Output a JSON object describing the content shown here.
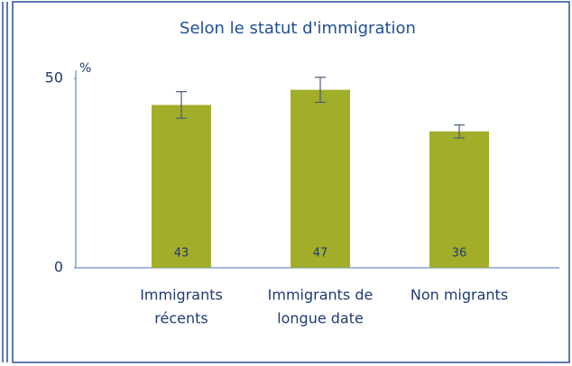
{
  "chart_data": {
    "type": "bar",
    "title": "Selon le statut d'immigration",
    "unit": "%",
    "categories": [
      [
        "Immigrants",
        "récents"
      ],
      [
        "Immigrants de",
        "longue date"
      ],
      [
        "Non migrants"
      ]
    ],
    "values": [
      43,
      47,
      36
    ],
    "errors": [
      3.5,
      3.3,
      1.7
    ],
    "color": "#a2ad2a",
    "error_color": "#4a5a7a",
    "ylim": [
      0,
      50
    ],
    "yticks": [
      0,
      50
    ],
    "grid": false
  }
}
